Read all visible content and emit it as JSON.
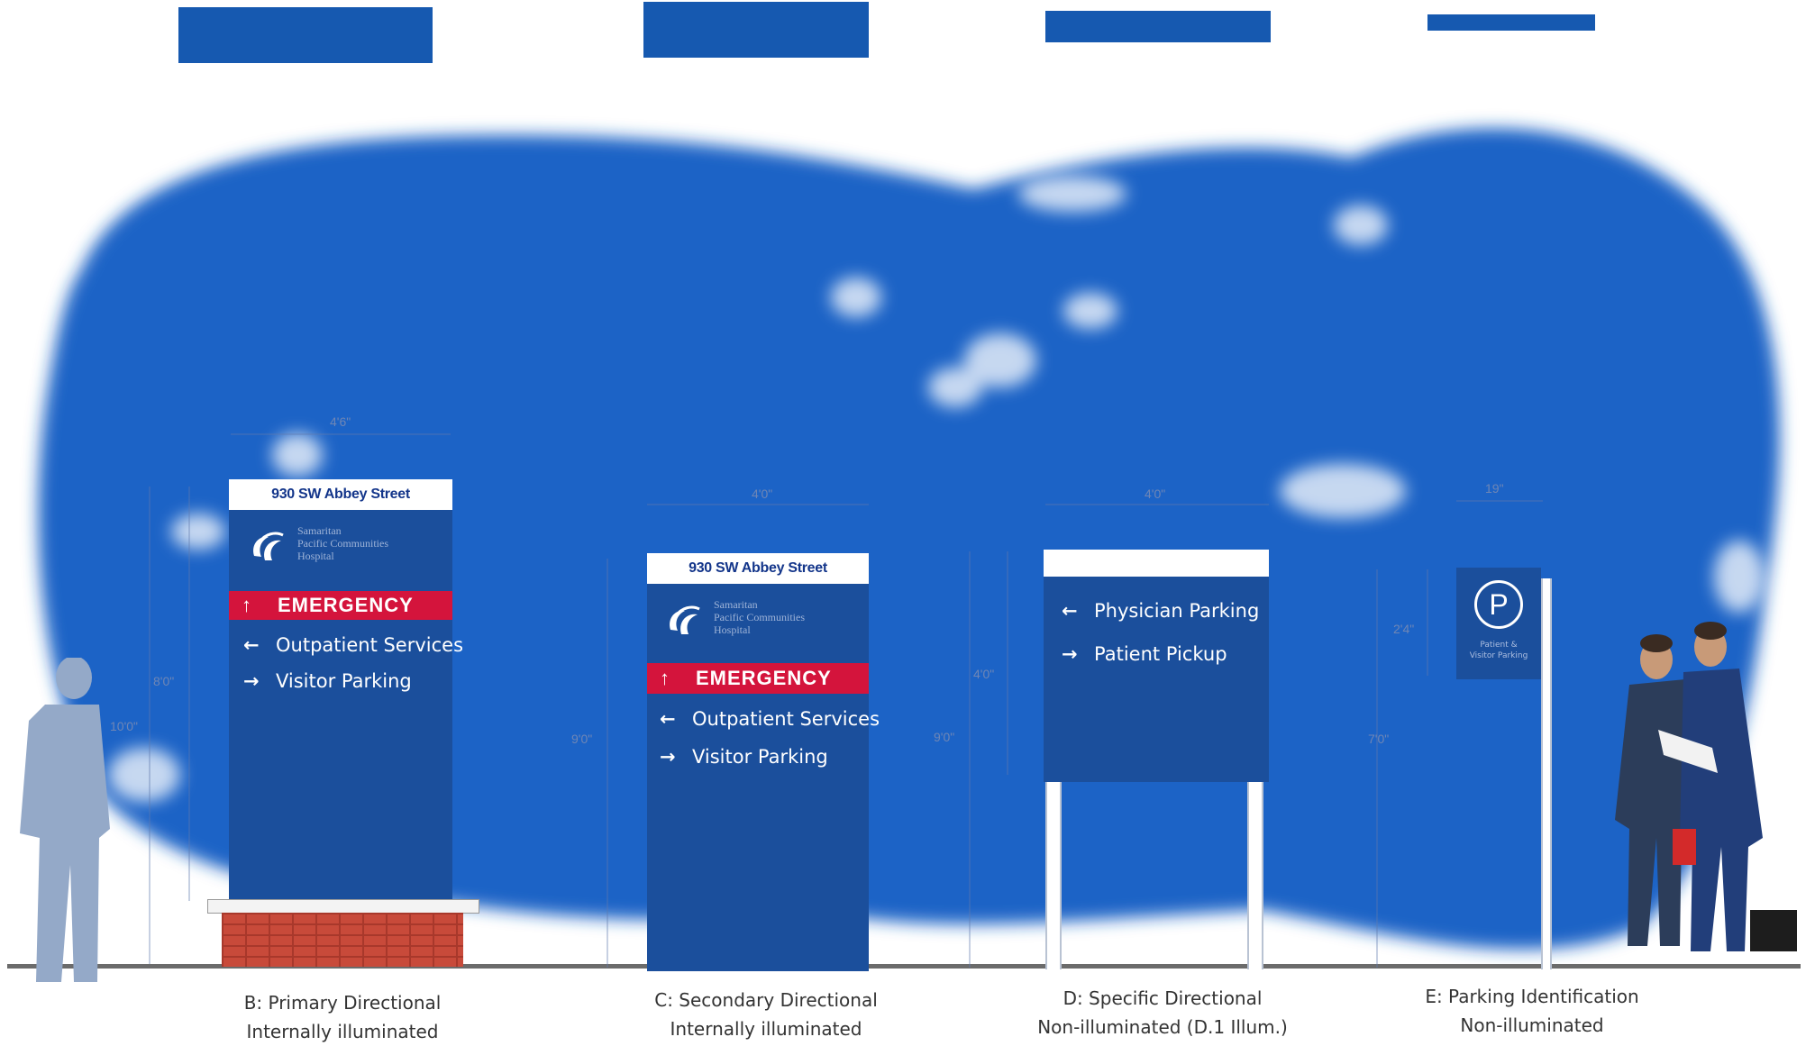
{
  "signs": {
    "b": {
      "address": "930 SW Abbey Street",
      "logo_text": "Samaritan\nPacific Communities\nHospital",
      "emergency": "EMERGENCY",
      "directions": [
        {
          "arrow": "←",
          "label": "Outpatient Services"
        },
        {
          "arrow": "→",
          "label": "Visitor Parking"
        }
      ],
      "caption_line1": "B:  Primary Directional",
      "caption_line2": "Internally illuminated"
    },
    "c": {
      "address": "930 SW Abbey Street",
      "logo_text": "Samaritan\nPacific Communities\nHospital",
      "emergency": "EMERGENCY",
      "directions": [
        {
          "arrow": "←",
          "label": "Outpatient Services"
        },
        {
          "arrow": "→",
          "label": "Visitor Parking"
        }
      ],
      "caption_line1": "C:  Secondary Directional",
      "caption_line2": "Internally illuminated"
    },
    "d": {
      "directions": [
        {
          "arrow": "←",
          "label": "Physician Parking"
        },
        {
          "arrow": "→",
          "label": "Patient Pickup"
        }
      ],
      "caption_line1": "D:  Specific Directional",
      "caption_line2": "Non-illuminated (D.1 Illum.)"
    },
    "e": {
      "parking_letter": "P",
      "panel_text": "Patient &\nVisitor Parking",
      "caption_line1": "E:  Parking Identification",
      "caption_line2": "Non-illuminated"
    }
  },
  "dimensions": {
    "b_width": "4'6\"",
    "b_height": "10'0\"",
    "b_inner": "8'0\"",
    "c_width": "4'0\"",
    "c_height": "9'0\"",
    "d_width": "4'0\"",
    "d_height": "9'0\"",
    "d_panel": "4'0\"",
    "e_width": "19\"",
    "e_height": "7'0\"",
    "e_panel": "2'4\""
  },
  "colors": {
    "sign_blue": "#1b4f9c",
    "emergency_red": "#d4143c",
    "sky_blue": "#1a63c6",
    "brick": "#c84a3a"
  }
}
